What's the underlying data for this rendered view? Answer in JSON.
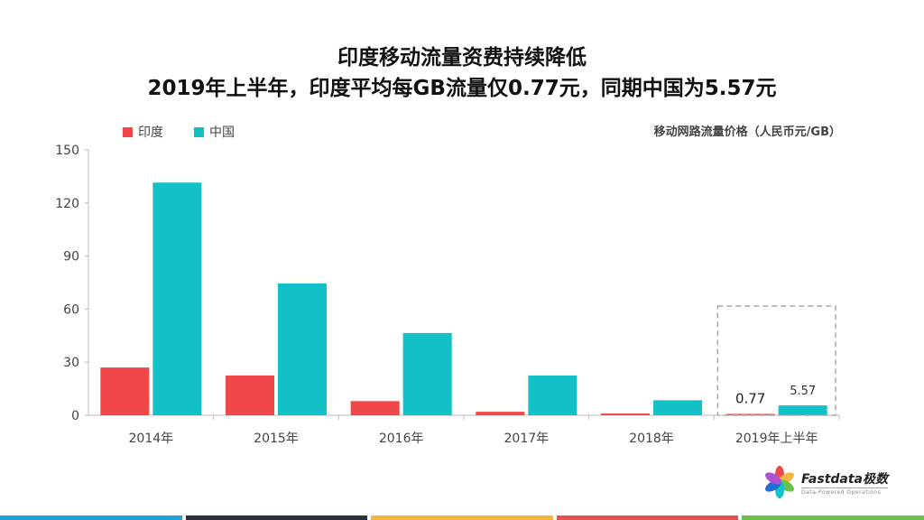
{
  "title_line1": "印度移动流量资费持续降低",
  "title_line2": "2019年上半年，印度平均每GB流量仅0.77元，同期中国为5.57元",
  "unit_label": "移动网路流量价格（人民币元/GB）",
  "logo": {
    "name": "Fastdata极数",
    "tagline": "Data-Powered Operations"
  },
  "colors": {
    "india": "#f04848",
    "china": "#12c0c8",
    "bottom_bar": [
      "#1fa3d8",
      "#2b2f3a",
      "#f2b73c",
      "#e94f4f",
      "#6cc04a"
    ]
  },
  "chart_data": {
    "type": "bar",
    "categories": [
      "2014年",
      "2015年",
      "2016年",
      "2017年",
      "2018年",
      "2019年上半年"
    ],
    "series": [
      {
        "name": "印度",
        "values": [
          27,
          22.5,
          8,
          2,
          1,
          0.77
        ]
      },
      {
        "name": "中国",
        "values": [
          131.5,
          74.5,
          46.5,
          22.5,
          8.5,
          5.57
        ]
      }
    ],
    "yticks": [
      "0",
      "30",
      "60",
      "90",
      "120",
      "150"
    ],
    "ylim": [
      0,
      150
    ],
    "data_labels": {
      "india_last": "0.77",
      "china_last": "5.57"
    },
    "highlight_category": "2019年上半年",
    "legend_position": "top-left",
    "grid": false
  }
}
